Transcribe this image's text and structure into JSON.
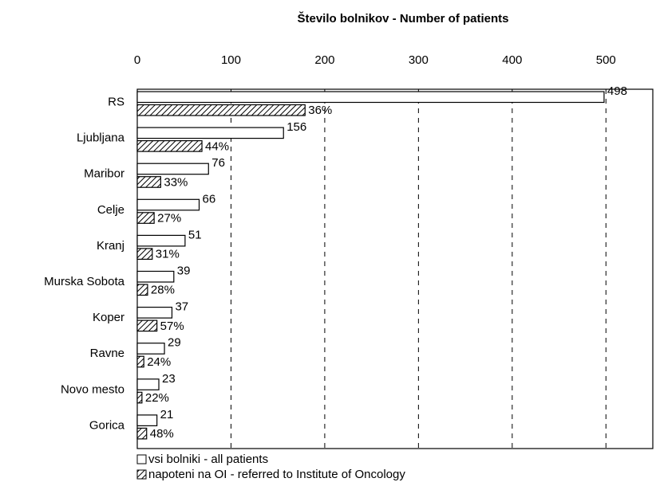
{
  "chart_data": {
    "type": "hbar",
    "title": "Število bolnikov - Number of patients",
    "categories": [
      "RS",
      "Ljubljana",
      "Maribor",
      "Celje",
      "Kranj",
      "Murska Sobota",
      "Koper",
      "Ravne",
      "Novo mesto",
      "Gorica"
    ],
    "series": [
      {
        "name": "vsi bolniki - all patients",
        "color": "#ffffff",
        "hatch": false,
        "values": [
          498,
          156,
          76,
          66,
          51,
          39,
          37,
          29,
          23,
          21
        ]
      },
      {
        "name": "napoteni na OI - referred to Institute of Oncology",
        "color": "#ffffff",
        "hatch": true,
        "values": [
          179,
          69,
          25,
          18,
          16,
          11,
          21,
          7,
          5,
          10
        ],
        "labels": [
          "36%",
          "44%",
          "33%",
          "27%",
          "31%",
          "28%",
          "57%",
          "24%",
          "22%",
          "48%"
        ]
      }
    ],
    "xlim": [
      0,
      550
    ],
    "xticks": [
      0,
      100,
      200,
      300,
      400,
      500
    ],
    "grid": true,
    "legend": "bottom"
  }
}
